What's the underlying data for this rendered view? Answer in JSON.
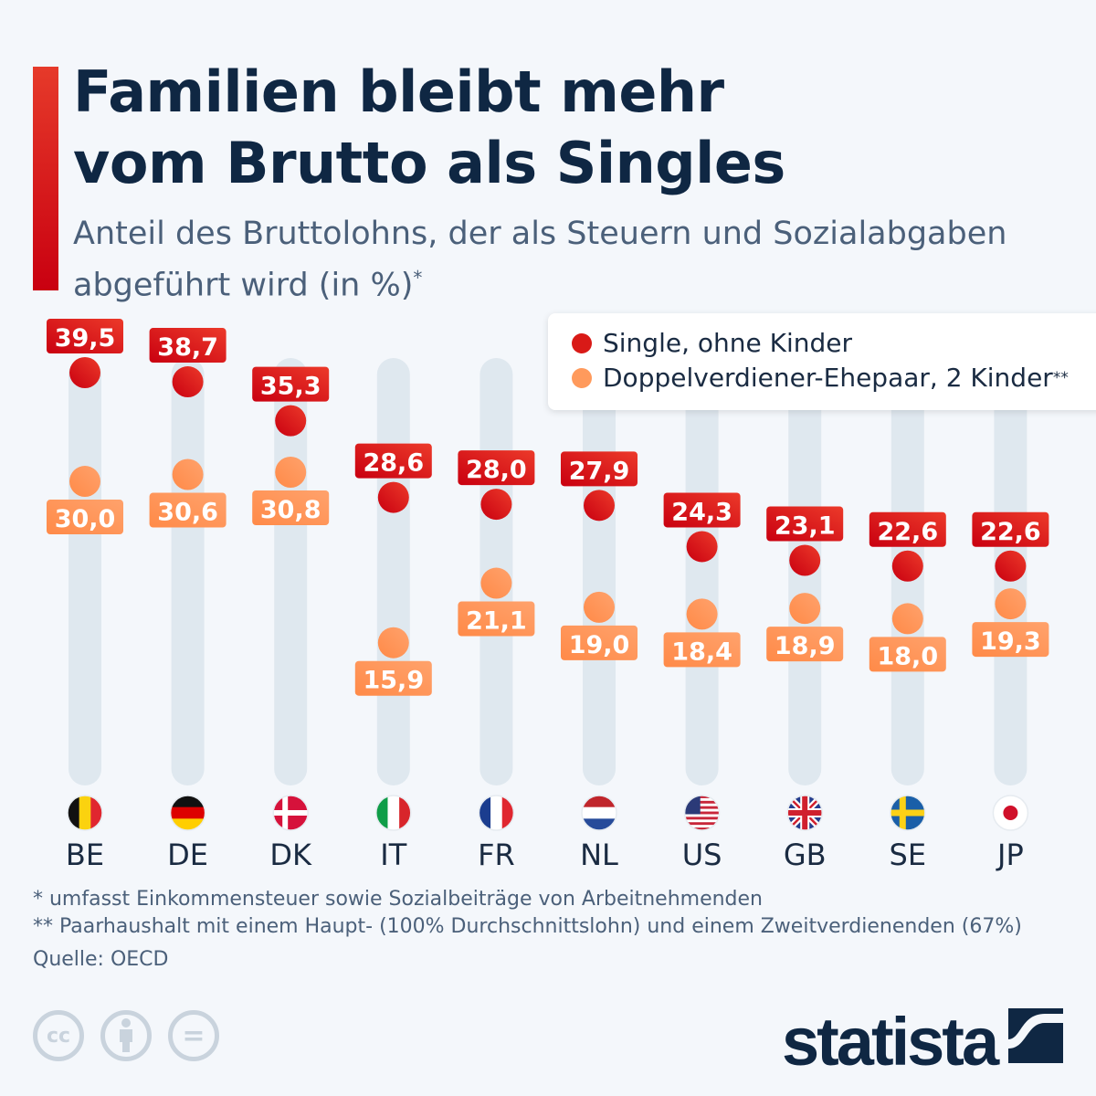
{
  "title_lines": [
    "Familien bleibt mehr",
    "vom Brutto als Singles"
  ],
  "subtitle_lines": [
    "Anteil des Bruttolohns, der als Steuern und Sozialabgaben",
    "abgeführt wird (in %)"
  ],
  "subtitle_mark": "*",
  "legend": {
    "items": [
      {
        "label": "Single, ohne Kinder",
        "mark": ""
      },
      {
        "label": "Doppelverdiener-Ehepaar, 2 Kinder",
        "mark": "**"
      }
    ],
    "placement": "top-right"
  },
  "colors": {
    "single": "#d91a17",
    "family": "#ff9a5c",
    "track": "#dfe8ef",
    "title": "#0f2743",
    "accent": "#d3000f"
  },
  "chart_data": {
    "type": "dot-plot",
    "categories": [
      "BE",
      "DE",
      "DK",
      "IT",
      "FR",
      "NL",
      "US",
      "GB",
      "SE",
      "JP"
    ],
    "flags": [
      "belgium-flag",
      "germany-flag",
      "denmark-flag",
      "italy-flag",
      "france-flag",
      "netherlands-flag",
      "usa-flag",
      "uk-flag",
      "sweden-flag",
      "japan-flag"
    ],
    "series": [
      {
        "name": "Single, ohne Kinder",
        "values": [
          39.5,
          38.7,
          35.3,
          28.6,
          28.0,
          27.9,
          24.3,
          23.1,
          22.6,
          22.6
        ],
        "labels": [
          "39,5",
          "38,7",
          "35,3",
          "28,6",
          "28,0",
          "27,9",
          "24,3",
          "23,1",
          "22,6",
          "22,6"
        ]
      },
      {
        "name": "Doppelverdiener-Ehepaar, 2 Kinder",
        "values": [
          30.0,
          30.6,
          30.8,
          15.9,
          21.1,
          19.0,
          18.4,
          18.9,
          18.0,
          19.3
        ],
        "labels": [
          "30,0",
          "30,6",
          "30,8",
          "15,9",
          "21,1",
          "19,0",
          "18,4",
          "18,9",
          "18,0",
          "19,3"
        ]
      }
    ],
    "grid": false
  },
  "footnotes": [
    "*   umfasst Einkommensteuer sowie Sozialbeiträge von Arbeitnehmenden",
    "** Paarhaushalt mit einem Haupt- (100% Durchschnittslohn) und einem Zweitverdienenden (67%)"
  ],
  "source": "Quelle: OECD",
  "license_icons": [
    "cc-icon",
    "attribution-icon",
    "no-derivatives-icon"
  ],
  "license_glyphs": [
    "cc",
    "="
  ],
  "brand": "statista"
}
